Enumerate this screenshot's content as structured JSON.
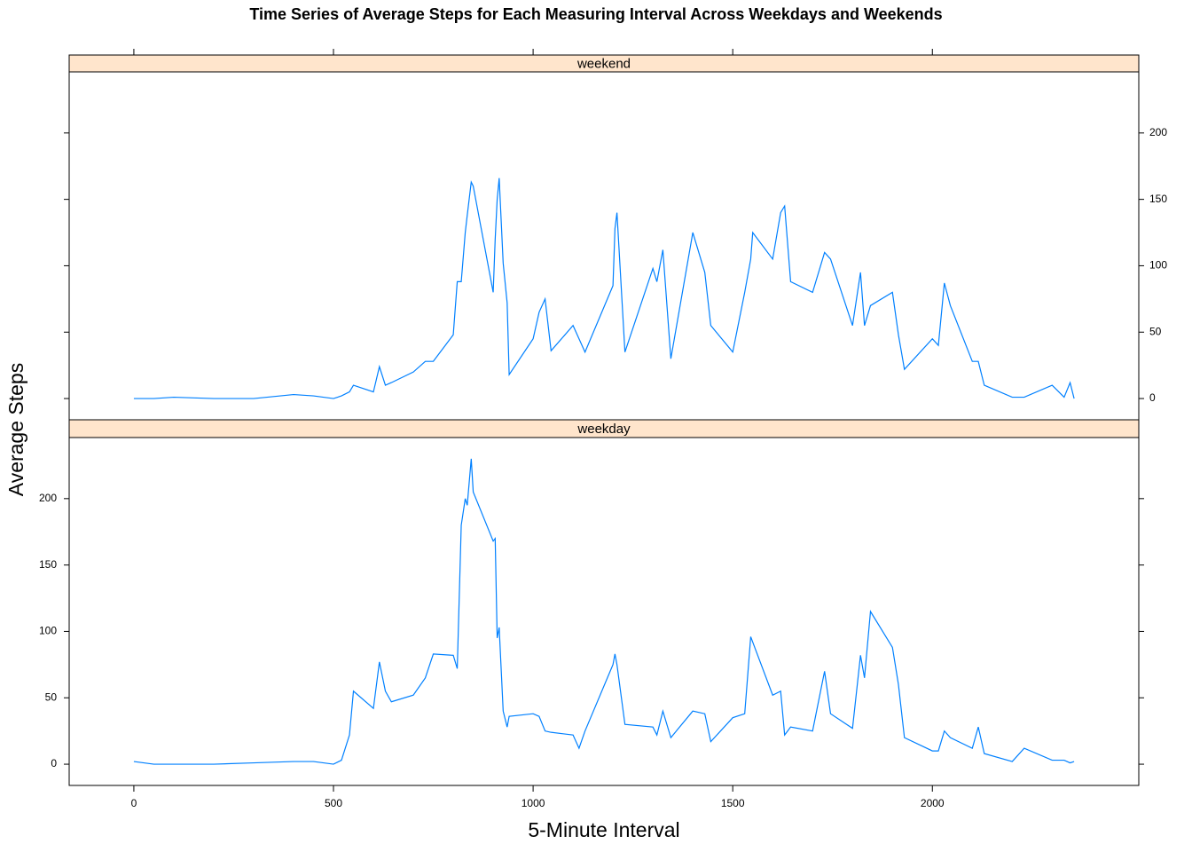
{
  "chart_data": {
    "type": "line",
    "title": "Time Series of Average Steps for Each Measuring Interval Across Weekdays and Weekends",
    "xlabel": "5-Minute Interval",
    "ylabel": "Average Steps",
    "xlim": [
      -162,
      2517
    ],
    "xticks": [
      0,
      500,
      1000,
      1500,
      2000
    ],
    "ylim": [
      -16,
      246
    ],
    "yticks": [
      0,
      50,
      100,
      150,
      200
    ],
    "color": "#0080ff",
    "strip_color": "#ffe5cc",
    "x": [
      0,
      50,
      100,
      200,
      300,
      400,
      450,
      500,
      520,
      540,
      550,
      600,
      615,
      630,
      645,
      700,
      730,
      750,
      800,
      810,
      820,
      830,
      835,
      845,
      850,
      900,
      905,
      910,
      915,
      925,
      935,
      940,
      1000,
      1015,
      1030,
      1045,
      1100,
      1115,
      1130,
      1200,
      1205,
      1210,
      1230,
      1300,
      1310,
      1325,
      1345,
      1400,
      1430,
      1445,
      1500,
      1530,
      1545,
      1550,
      1600,
      1620,
      1630,
      1645,
      1700,
      1720,
      1730,
      1745,
      1800,
      1820,
      1830,
      1845,
      1900,
      1915,
      1930,
      2000,
      2015,
      2030,
      2045,
      2100,
      2115,
      2130,
      2200,
      2230,
      2300,
      2330,
      2345,
      2355
    ],
    "series": [
      {
        "name": "weekend",
        "values": [
          0,
          0,
          1,
          0,
          0,
          3,
          2,
          0,
          2,
          5,
          10,
          5,
          24,
          10,
          12,
          20,
          28,
          28,
          48,
          88,
          88,
          125,
          138,
          163,
          160,
          80,
          120,
          150,
          166,
          102,
          72,
          18,
          45,
          65,
          75,
          36,
          55,
          45,
          35,
          85,
          128,
          140,
          35,
          98,
          88,
          112,
          30,
          125,
          95,
          55,
          35,
          80,
          105,
          125,
          105,
          140,
          145,
          88,
          80,
          100,
          110,
          105,
          55,
          95,
          55,
          70,
          80,
          48,
          22,
          45,
          40,
          87,
          70,
          28,
          28,
          10,
          1,
          1,
          10,
          1,
          12,
          0
        ]
      },
      {
        "name": "weekday",
        "values": [
          2,
          0,
          0,
          0,
          1,
          2,
          2,
          0,
          3,
          22,
          55,
          42,
          77,
          55,
          47,
          52,
          65,
          83,
          82,
          72,
          180,
          200,
          195,
          230,
          205,
          168,
          170,
          95,
          103,
          40,
          28,
          36,
          38,
          36,
          25,
          24,
          22,
          12,
          25,
          75,
          83,
          75,
          30,
          28,
          22,
          40,
          20,
          40,
          38,
          17,
          35,
          38,
          96,
          92,
          52,
          55,
          22,
          28,
          25,
          55,
          70,
          38,
          27,
          82,
          65,
          115,
          88,
          60,
          20,
          10,
          10,
          25,
          20,
          12,
          28,
          8,
          2,
          12,
          3,
          3,
          1,
          2
        ]
      }
    ]
  }
}
